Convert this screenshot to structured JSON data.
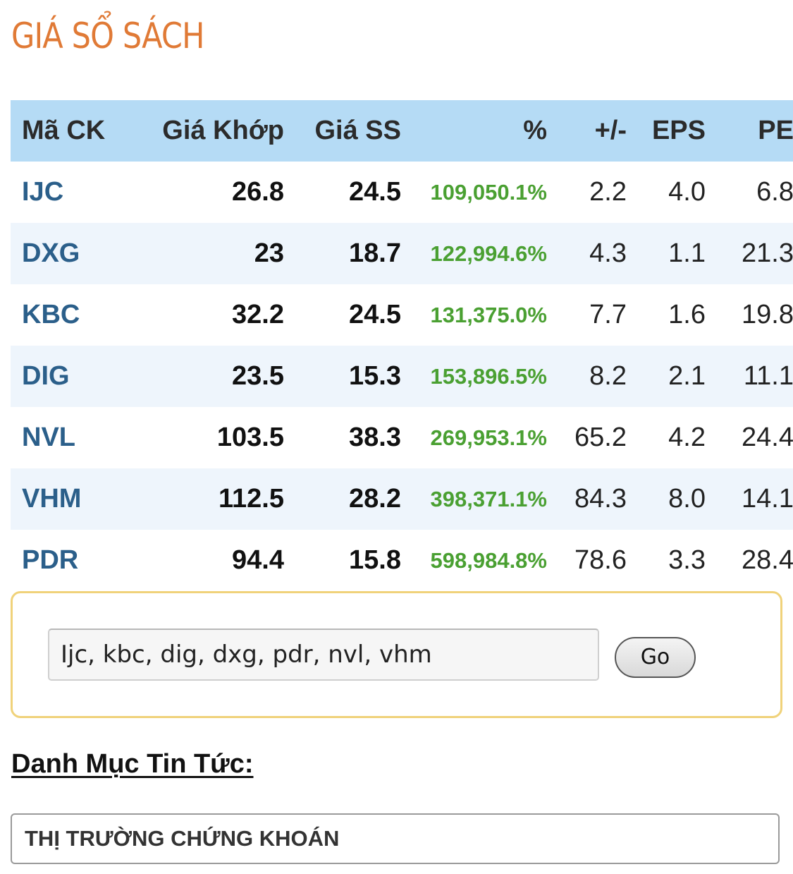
{
  "page_title": "GIÁ SỔ SÁCH",
  "table": {
    "headers": [
      "Mã CK",
      "Giá Khớp",
      "Giá SS",
      "%",
      "+/-",
      "EPS",
      "PE"
    ],
    "rows": [
      {
        "code": "IJC",
        "khop": "26.8",
        "ss": "24.5",
        "pct": "109,050.1%",
        "pm": "2.2",
        "eps": "4.0",
        "pe": "6.8"
      },
      {
        "code": "DXG",
        "khop": "23",
        "ss": "18.7",
        "pct": "122,994.6%",
        "pm": "4.3",
        "eps": "1.1",
        "pe": "21.3"
      },
      {
        "code": "KBC",
        "khop": "32.2",
        "ss": "24.5",
        "pct": "131,375.0%",
        "pm": "7.7",
        "eps": "1.6",
        "pe": "19.8"
      },
      {
        "code": "DIG",
        "khop": "23.5",
        "ss": "15.3",
        "pct": "153,896.5%",
        "pm": "8.2",
        "eps": "2.1",
        "pe": "11.1"
      },
      {
        "code": "NVL",
        "khop": "103.5",
        "ss": "38.3",
        "pct": "269,953.1%",
        "pm": "65.2",
        "eps": "4.2",
        "pe": "24.4"
      },
      {
        "code": "VHM",
        "khop": "112.5",
        "ss": "28.2",
        "pct": "398,371.1%",
        "pm": "84.3",
        "eps": "8.0",
        "pe": "14.1"
      },
      {
        "code": "PDR",
        "khop": "94.4",
        "ss": "15.8",
        "pct": "598,984.8%",
        "pm": "78.6",
        "eps": "3.3",
        "pe": "28.4"
      }
    ]
  },
  "search": {
    "value": "Ijc, kbc, dig, dxg, pdr, nvl, vhm",
    "button_label": "Go"
  },
  "news": {
    "heading": "Danh Mục Tin Tức:",
    "selected_category": "THỊ TRƯỜNG CHỨNG KHOÁN"
  },
  "colors": {
    "title": "#e07a36",
    "header_bg": "#b5dbf5",
    "code": "#2b5f8a",
    "percent": "#4aa032",
    "search_border": "#f0d27a"
  }
}
